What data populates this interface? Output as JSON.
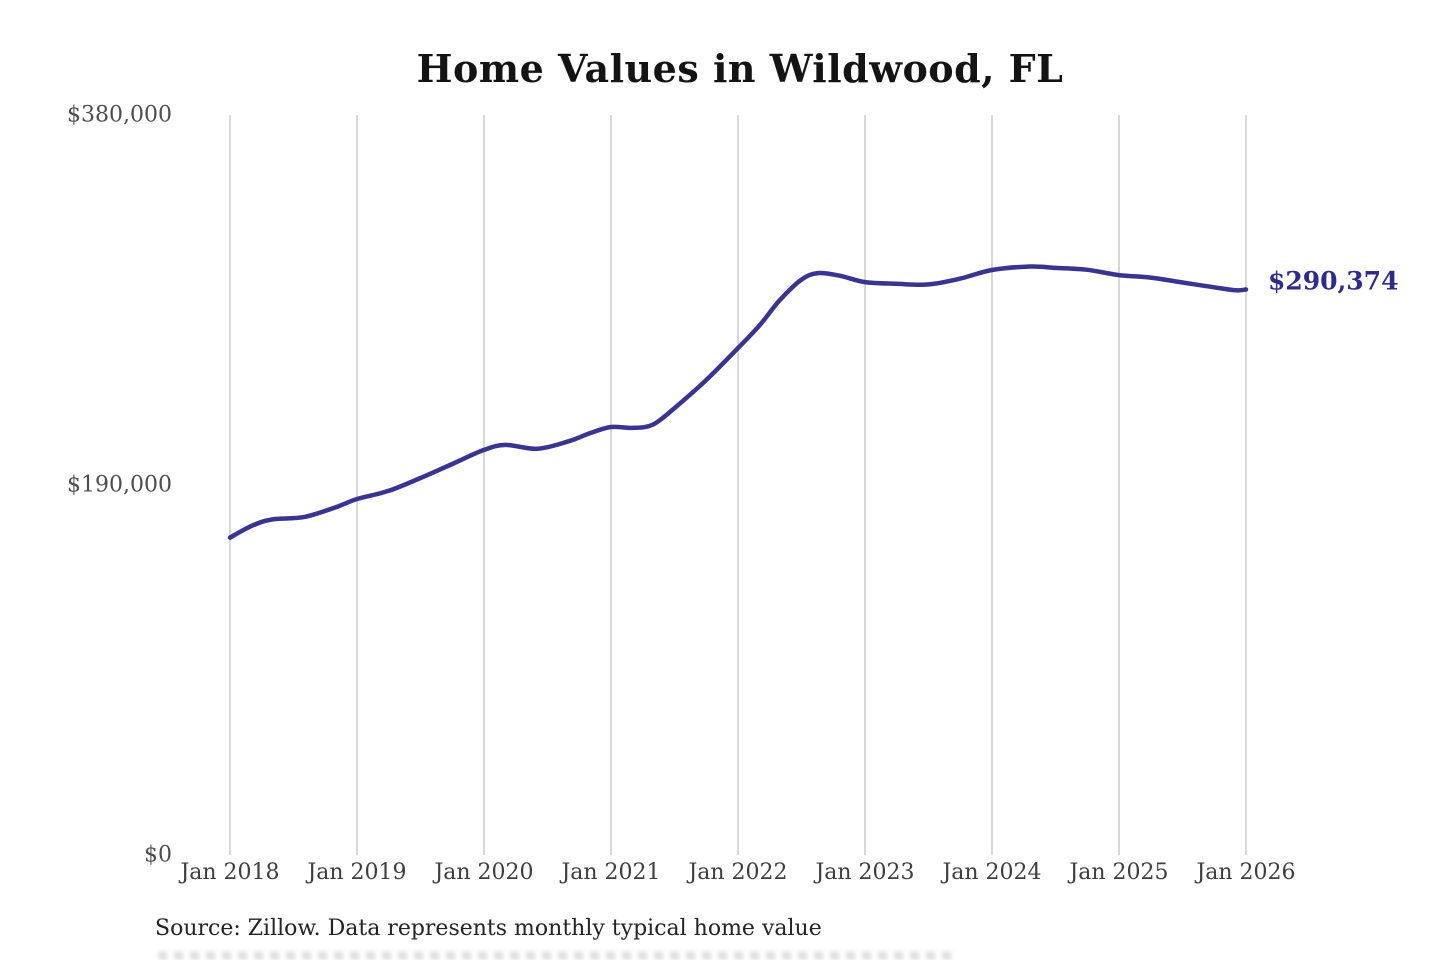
{
  "title": "Home Values in Wildwood, FL",
  "source_note": "Source: Zillow. Data represents monthly typical home value",
  "end_label": "$290,374",
  "colors": {
    "line": "#3a3491",
    "grid": "#cbcbcb",
    "y_tick_text": "#4d4d4d",
    "x_tick_text": "#3e3e3e",
    "title_text": "#141414",
    "end_label_text": "#2f2b8d",
    "source_text": "#232323",
    "background": "#ffffff"
  },
  "chart_data": {
    "type": "line",
    "title": "Home Values in Wildwood, FL",
    "xlabel": "",
    "ylabel": "",
    "xlim": [
      2018,
      2026
    ],
    "ylim": [
      0,
      380000
    ],
    "grid": "vertical-only",
    "legend": "none",
    "annotation": "$290,374",
    "last_value": 290374,
    "x_ticks": [
      {
        "label": "Jan 2018",
        "year": 2018
      },
      {
        "label": "Jan 2019",
        "year": 2019
      },
      {
        "label": "Jan 2020",
        "year": 2020
      },
      {
        "label": "Jan 2021",
        "year": 2021
      },
      {
        "label": "Jan 2022",
        "year": 2022
      },
      {
        "label": "Jan 2023",
        "year": 2023
      },
      {
        "label": "Jan 2024",
        "year": 2024
      },
      {
        "label": "Jan 2025",
        "year": 2025
      },
      {
        "label": "Jan 2026",
        "year": 2026
      }
    ],
    "y_ticks": [
      {
        "label": "$0",
        "value": 0
      },
      {
        "label": "$190,000",
        "value": 190000
      },
      {
        "label": "$380,000",
        "value": 380000
      }
    ],
    "series": [
      {
        "name": "Monthly typical home value",
        "color": "#3a3491",
        "points": [
          [
            2018.0,
            163000
          ],
          [
            2018.17,
            169000
          ],
          [
            2018.33,
            172300
          ],
          [
            2018.58,
            173500
          ],
          [
            2018.83,
            178500
          ],
          [
            2019.0,
            182800
          ],
          [
            2019.25,
            187000
          ],
          [
            2019.5,
            193600
          ],
          [
            2019.75,
            200800
          ],
          [
            2020.0,
            208000
          ],
          [
            2020.17,
            210600
          ],
          [
            2020.42,
            208600
          ],
          [
            2020.67,
            212500
          ],
          [
            2020.83,
            216500
          ],
          [
            2021.0,
            219800
          ],
          [
            2021.17,
            219300
          ],
          [
            2021.33,
            221000
          ],
          [
            2021.5,
            229500
          ],
          [
            2021.75,
            243900
          ],
          [
            2022.0,
            260300
          ],
          [
            2022.17,
            272000
          ],
          [
            2022.33,
            285000
          ],
          [
            2022.5,
            295500
          ],
          [
            2022.63,
            298800
          ],
          [
            2022.8,
            297500
          ],
          [
            2023.0,
            294200
          ],
          [
            2023.25,
            293300
          ],
          [
            2023.5,
            293000
          ],
          [
            2023.75,
            296000
          ],
          [
            2024.0,
            300400
          ],
          [
            2024.3,
            302200
          ],
          [
            2024.5,
            301500
          ],
          [
            2024.75,
            300500
          ],
          [
            2025.0,
            297800
          ],
          [
            2025.25,
            296500
          ],
          [
            2025.5,
            294000
          ],
          [
            2025.75,
            291500
          ],
          [
            2025.92,
            290000
          ],
          [
            2026.0,
            290374
          ]
        ]
      }
    ]
  }
}
